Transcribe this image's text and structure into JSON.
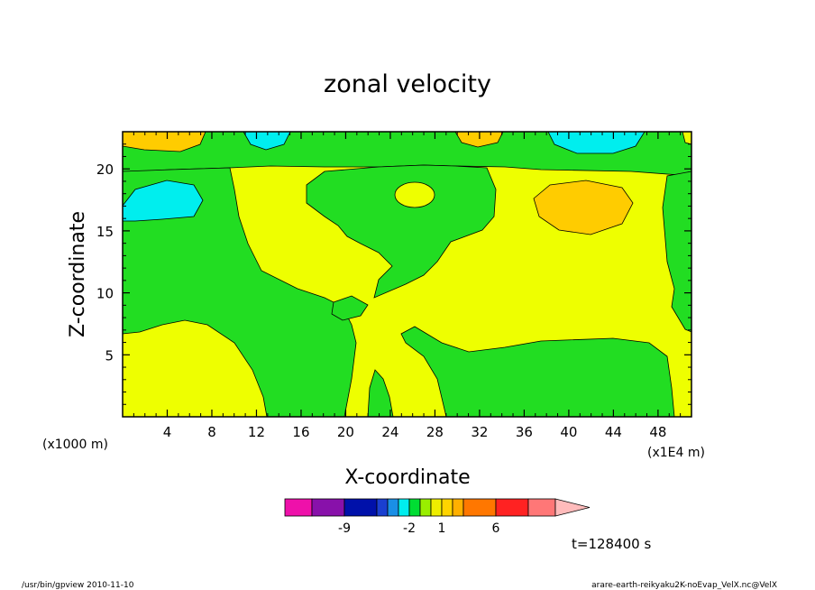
{
  "chart_data": {
    "type": "heatmap",
    "title": "zonal velocity",
    "xlabel": "X-coordinate",
    "ylabel": "Z-coordinate",
    "x_unit_label": "(x1000 m)",
    "x_scale_label": "(x1E4 m)",
    "xlim": [
      0,
      51
    ],
    "ylim": [
      0,
      23
    ],
    "x_ticks": [
      "4",
      "8",
      "12",
      "16",
      "20",
      "24",
      "28",
      "32",
      "36",
      "40",
      "44",
      "48"
    ],
    "y_ticks": [
      "5",
      "10",
      "15",
      "20"
    ],
    "time_label": "t=128400 s",
    "colorbar": {
      "labels": [
        "-9",
        "-2",
        "1",
        "6"
      ],
      "colors": [
        "#ee11aa",
        "#8811aa",
        "#0011aa",
        "#1a3fd0",
        "#1a8fe6",
        "#00eeee",
        "#00dd33",
        "#99ee00",
        "#eeee00",
        "#ffd400",
        "#ffb000",
        "#ff7700",
        "#ff2222",
        "#ff7777",
        "#ffbbbb"
      ]
    },
    "level_colors": {
      "cyan": "#00eeee",
      "green": "#22dd22",
      "yellow": "#eeff00",
      "orange": "#ffcc00"
    }
  },
  "footer": {
    "left": "/usr/bin/gpview  2010-11-10",
    "right": "arare-earth-reikyaku2K-noEvap_VelX.nc@VelX"
  }
}
